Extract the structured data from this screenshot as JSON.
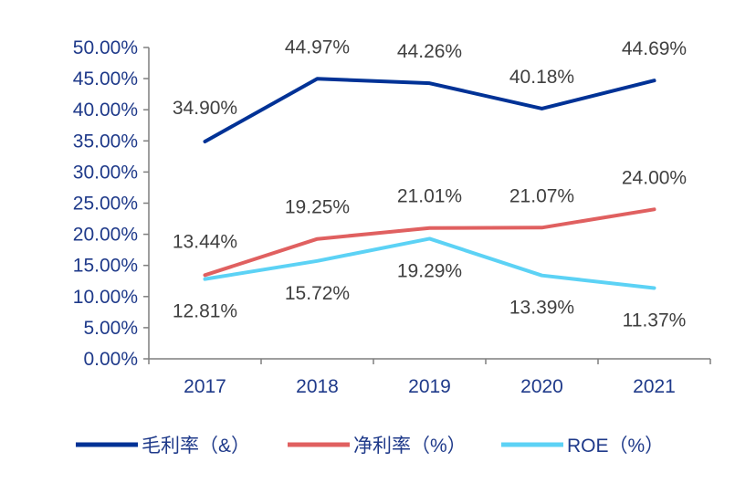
{
  "chart_data": {
    "type": "line",
    "categories": [
      "2017",
      "2018",
      "2019",
      "2020",
      "2021"
    ],
    "ylim": [
      0,
      50
    ],
    "yticks": [
      "0.00%",
      "5.00%",
      "10.00%",
      "15.00%",
      "20.00%",
      "25.00%",
      "30.00%",
      "35.00%",
      "40.00%",
      "45.00%",
      "50.00%"
    ],
    "grid": false,
    "legend_position": "bottom",
    "series": [
      {
        "name": "毛利率（&）",
        "color": "#003296",
        "values": [
          34.9,
          44.97,
          44.26,
          40.18,
          44.69
        ],
        "labels": [
          "34.90%",
          "44.97%",
          "44.26%",
          "40.18%",
          "44.69%"
        ]
      },
      {
        "name": "净利率（%）",
        "color": "#e06060",
        "values": [
          13.44,
          19.25,
          21.01,
          21.07,
          24.0
        ],
        "labels": [
          "13.44%",
          "19.25%",
          "21.01%",
          "21.07%",
          "24.00%"
        ]
      },
      {
        "name": "ROE（%）",
        "color": "#5cd2f5",
        "values": [
          12.81,
          15.72,
          19.29,
          13.39,
          11.37
        ],
        "labels": [
          "12.81%",
          "15.72%",
          "19.29%",
          "13.39%",
          "11.37%"
        ]
      }
    ]
  }
}
